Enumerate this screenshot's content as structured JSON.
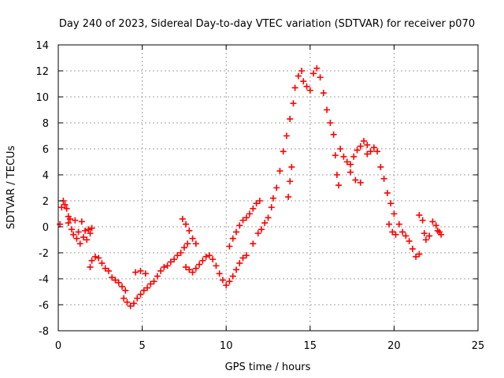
{
  "chart_data": {
    "type": "scatter",
    "title": "Day 240 of 2023, Sidereal Day-to-day VTEC variation (SDTVAR) for receiver p070",
    "xlabel": "GPS time / hours",
    "ylabel": "SDTVAR / TECUs",
    "xlim": [
      0,
      25
    ],
    "ylim": [
      -8,
      14
    ],
    "xticks": [
      0,
      5,
      10,
      15,
      20,
      25
    ],
    "yticks": [
      -8,
      -6,
      -4,
      -2,
      0,
      2,
      4,
      6,
      8,
      10,
      12,
      14
    ],
    "grid": true,
    "marker": "+",
    "series": [
      {
        "name": "SDTVAR",
        "color": "#ff0000",
        "points": [
          [
            0.1,
            0.2
          ],
          [
            0.2,
            1.5
          ],
          [
            0.3,
            2.0
          ],
          [
            0.4,
            1.7
          ],
          [
            0.5,
            1.4
          ],
          [
            0.6,
            0.8
          ],
          [
            0.6,
            0.3
          ],
          [
            0.7,
            0.6
          ],
          [
            0.8,
            -0.2
          ],
          [
            0.9,
            -0.6
          ],
          [
            1.0,
            0.5
          ],
          [
            1.1,
            -0.9
          ],
          [
            1.2,
            -0.4
          ],
          [
            1.3,
            -1.3
          ],
          [
            1.4,
            0.4
          ],
          [
            1.5,
            -0.8
          ],
          [
            1.6,
            -0.3
          ],
          [
            1.7,
            -1.0
          ],
          [
            1.8,
            -0.2
          ],
          [
            1.9,
            -0.5
          ],
          [
            2.0,
            -0.1
          ],
          [
            1.9,
            -3.1
          ],
          [
            2.0,
            -2.6
          ],
          [
            2.2,
            -2.3
          ],
          [
            2.4,
            -2.4
          ],
          [
            2.6,
            -2.8
          ],
          [
            2.8,
            -3.2
          ],
          [
            3.0,
            -3.4
          ],
          [
            3.2,
            -3.9
          ],
          [
            3.4,
            -4.1
          ],
          [
            3.6,
            -4.3
          ],
          [
            3.8,
            -4.6
          ],
          [
            4.0,
            -4.9
          ],
          [
            3.9,
            -5.5
          ],
          [
            4.1,
            -5.8
          ],
          [
            4.3,
            -6.1
          ],
          [
            4.5,
            -5.9
          ],
          [
            4.7,
            -5.5
          ],
          [
            4.9,
            -5.2
          ],
          [
            5.1,
            -4.9
          ],
          [
            5.3,
            -4.7
          ],
          [
            4.6,
            -3.5
          ],
          [
            4.9,
            -3.4
          ],
          [
            5.2,
            -3.6
          ],
          [
            5.5,
            -4.4
          ],
          [
            5.7,
            -4.2
          ],
          [
            5.9,
            -3.8
          ],
          [
            6.1,
            -3.4
          ],
          [
            6.3,
            -3.1
          ],
          [
            6.5,
            -3.0
          ],
          [
            6.7,
            -2.7
          ],
          [
            6.9,
            -2.5
          ],
          [
            7.1,
            -2.2
          ],
          [
            7.3,
            -2.0
          ],
          [
            7.5,
            -1.6
          ],
          [
            7.7,
            -1.3
          ],
          [
            7.4,
            0.6
          ],
          [
            7.6,
            0.2
          ],
          [
            7.8,
            -0.3
          ],
          [
            8.0,
            -0.9
          ],
          [
            8.2,
            -1.3
          ],
          [
            7.6,
            -3.1
          ],
          [
            7.8,
            -3.3
          ],
          [
            8.0,
            -3.5
          ],
          [
            8.2,
            -3.2
          ],
          [
            8.4,
            -2.9
          ],
          [
            8.6,
            -2.6
          ],
          [
            8.8,
            -2.3
          ],
          [
            9.0,
            -2.2
          ],
          [
            9.2,
            -2.5
          ],
          [
            9.4,
            -3.0
          ],
          [
            9.6,
            -3.6
          ],
          [
            9.8,
            -4.1
          ],
          [
            10.0,
            -4.5
          ],
          [
            10.2,
            -4.2
          ],
          [
            10.4,
            -3.8
          ],
          [
            10.6,
            -3.3
          ],
          [
            10.8,
            -2.8
          ],
          [
            11.0,
            -2.4
          ],
          [
            11.2,
            -2.2
          ],
          [
            10.2,
            -1.5
          ],
          [
            10.4,
            -0.9
          ],
          [
            10.6,
            -0.4
          ],
          [
            10.8,
            0.1
          ],
          [
            11.0,
            0.5
          ],
          [
            11.2,
            0.7
          ],
          [
            11.4,
            1.0
          ],
          [
            11.6,
            1.4
          ],
          [
            11.8,
            1.8
          ],
          [
            12.0,
            2.0
          ],
          [
            11.6,
            -1.3
          ],
          [
            11.9,
            -0.5
          ],
          [
            12.1,
            -0.2
          ],
          [
            12.3,
            0.3
          ],
          [
            12.5,
            0.7
          ],
          [
            12.7,
            1.5
          ],
          [
            12.8,
            2.2
          ],
          [
            13.0,
            3.0
          ],
          [
            13.2,
            4.3
          ],
          [
            13.4,
            5.8
          ],
          [
            13.6,
            7.0
          ],
          [
            13.7,
            2.3
          ],
          [
            13.8,
            3.5
          ],
          [
            13.9,
            4.6
          ],
          [
            13.8,
            8.3
          ],
          [
            14.0,
            9.5
          ],
          [
            14.1,
            10.7
          ],
          [
            14.3,
            11.6
          ],
          [
            14.5,
            12.0
          ],
          [
            14.6,
            11.2
          ],
          [
            14.8,
            10.8
          ],
          [
            15.0,
            10.5
          ],
          [
            15.2,
            11.8
          ],
          [
            15.4,
            12.2
          ],
          [
            15.6,
            11.5
          ],
          [
            15.8,
            10.3
          ],
          [
            16.0,
            9.0
          ],
          [
            16.2,
            8.0
          ],
          [
            16.4,
            7.1
          ],
          [
            16.5,
            5.5
          ],
          [
            16.6,
            4.0
          ],
          [
            16.7,
            3.2
          ],
          [
            16.8,
            6.0
          ],
          [
            17.0,
            5.4
          ],
          [
            17.2,
            5.0
          ],
          [
            17.4,
            4.8
          ],
          [
            17.6,
            5.4
          ],
          [
            17.8,
            5.9
          ],
          [
            18.0,
            6.2
          ],
          [
            18.2,
            6.6
          ],
          [
            18.4,
            6.3
          ],
          [
            17.4,
            4.2
          ],
          [
            17.7,
            3.6
          ],
          [
            18.0,
            3.4
          ],
          [
            18.4,
            5.6
          ],
          [
            18.6,
            5.8
          ],
          [
            18.8,
            6.1
          ],
          [
            19.0,
            5.8
          ],
          [
            19.2,
            4.6
          ],
          [
            19.4,
            3.7
          ],
          [
            19.6,
            2.6
          ],
          [
            19.8,
            1.8
          ],
          [
            20.0,
            1.0
          ],
          [
            19.7,
            0.2
          ],
          [
            19.9,
            -0.4
          ],
          [
            20.1,
            -0.6
          ],
          [
            20.3,
            0.2
          ],
          [
            20.5,
            -0.4
          ],
          [
            20.7,
            -0.7
          ],
          [
            20.9,
            -1.1
          ],
          [
            21.1,
            -1.7
          ],
          [
            21.3,
            -2.3
          ],
          [
            21.5,
            -2.1
          ],
          [
            21.5,
            0.9
          ],
          [
            21.7,
            0.5
          ],
          [
            21.8,
            -0.5
          ],
          [
            21.9,
            -1.0
          ],
          [
            22.1,
            -0.7
          ],
          [
            22.3,
            0.4
          ],
          [
            22.5,
            0.1
          ],
          [
            22.6,
            -0.3
          ],
          [
            22.7,
            -0.4
          ],
          [
            22.8,
            -0.6
          ]
        ]
      }
    ]
  }
}
